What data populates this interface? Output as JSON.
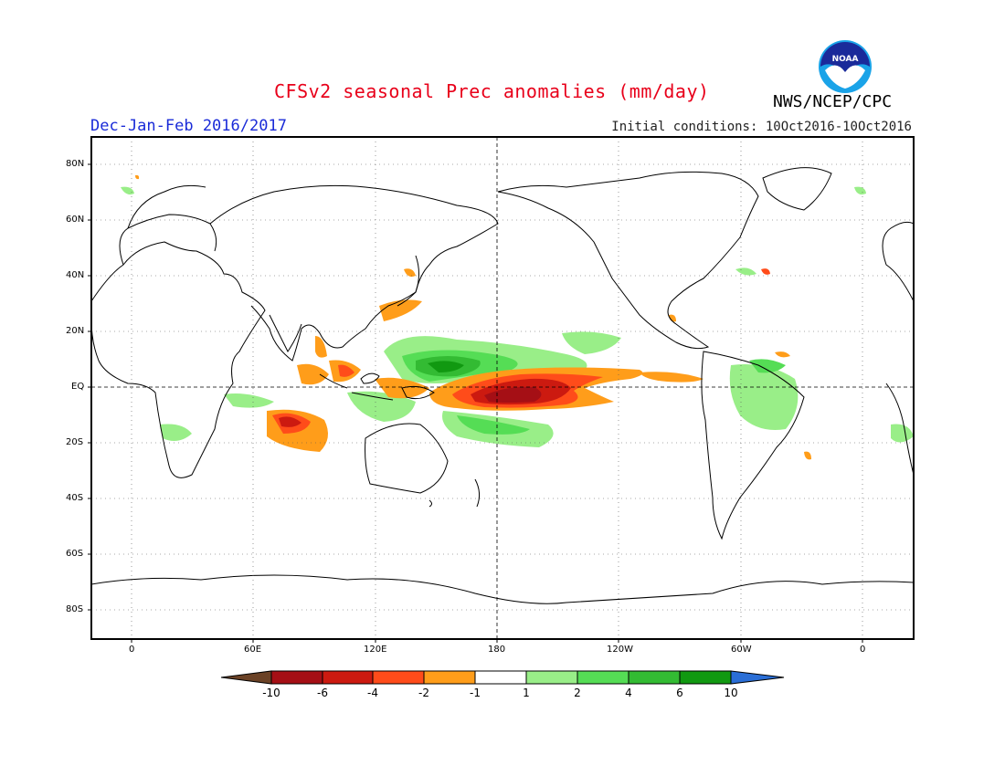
{
  "header": {
    "title": "CFSv2 seasonal Prec anomalies (mm/day)",
    "season": "Dec-Jan-Feb 2016/2017",
    "initial_conditions": "Initial conditions: 10Oct2016-10Oct2016",
    "organization": "NWS/NCEP/CPC",
    "logo_text": "NOAA"
  },
  "map": {
    "projection": "equirectangular",
    "lon_range": [
      -30,
      375
    ],
    "lat_range": [
      -90,
      90
    ],
    "lat_labels": [
      "80N",
      "60N",
      "40N",
      "20N",
      "EQ",
      "20S",
      "40S",
      "60S",
      "80S"
    ],
    "lon_labels": [
      "0",
      "60E",
      "120E",
      "180",
      "120W",
      "60W",
      "0"
    ]
  },
  "colorbar": {
    "labels": [
      "-10",
      "-6",
      "-4",
      "-2",
      "-1",
      "1",
      "2",
      "4",
      "6",
      "10"
    ],
    "colors": [
      "#6b4226",
      "#a50f15",
      "#cc1a10",
      "#ff4c1a",
      "#ff9d1a",
      "#ffffff",
      "#99ee88",
      "#55dd55",
      "#33bb33",
      "#119911",
      "#2a6ed6"
    ]
  }
}
